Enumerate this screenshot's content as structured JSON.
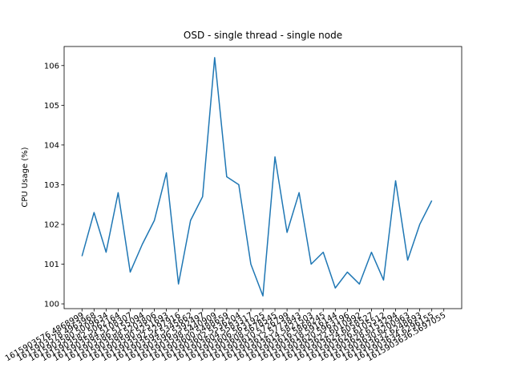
{
  "chart_data": {
    "type": "line",
    "title": "OSD - single thread - single node",
    "ylabel": "CPU Usage (%)",
    "categories": [
      "1615903576.4868999",
      "1615903578.4963968",
      "1615903580.5009634",
      "1615903582.5062164",
      "1615903584.5108307",
      "1615903586.5155094",
      "1615903588.5203806",
      "1615903590.5251693",
      "1615903592.5297916",
      "1615903594.5345662",
      "1615903596.5392497",
      "1615903598.5440909",
      "1615903600.5488659",
      "1615903602.5536204",
      "1615903604.5583317",
      "1615903606.5631925",
      "1615903608.5678545",
      "1615903610.5726799",
      "1615903612.5773843",
      "1615903614.5821503",
      "1615903616.5868245",
      "1615903618.5916144",
      "1615903620.5963196",
      "1615903622.6010992",
      "1615903624.6058527",
      "1615903626.6105512",
      "1615903628.6153294",
      "1615903630.6200963",
      "1615903632.6248693",
      "1615903634.6296155",
      "1615903636.5697055"
    ],
    "series": [
      {
        "name": "CPU Usage",
        "color": "#1f77b4",
        "values": [
          101.2,
          102.3,
          101.3,
          102.8,
          100.8,
          101.5,
          102.1,
          103.3,
          100.5,
          102.1,
          102.7,
          106.2,
          103.2,
          103.0,
          101.0,
          100.2,
          103.7,
          101.8,
          102.8,
          101.0,
          101.3,
          100.4,
          100.8,
          100.5,
          101.3,
          100.6,
          103.1,
          101.1,
          102.0,
          102.6,
          null
        ]
      }
    ],
    "ylim": [
      99.88,
      106.48
    ],
    "yticks": [
      100,
      101,
      102,
      103,
      104,
      105,
      106
    ]
  }
}
